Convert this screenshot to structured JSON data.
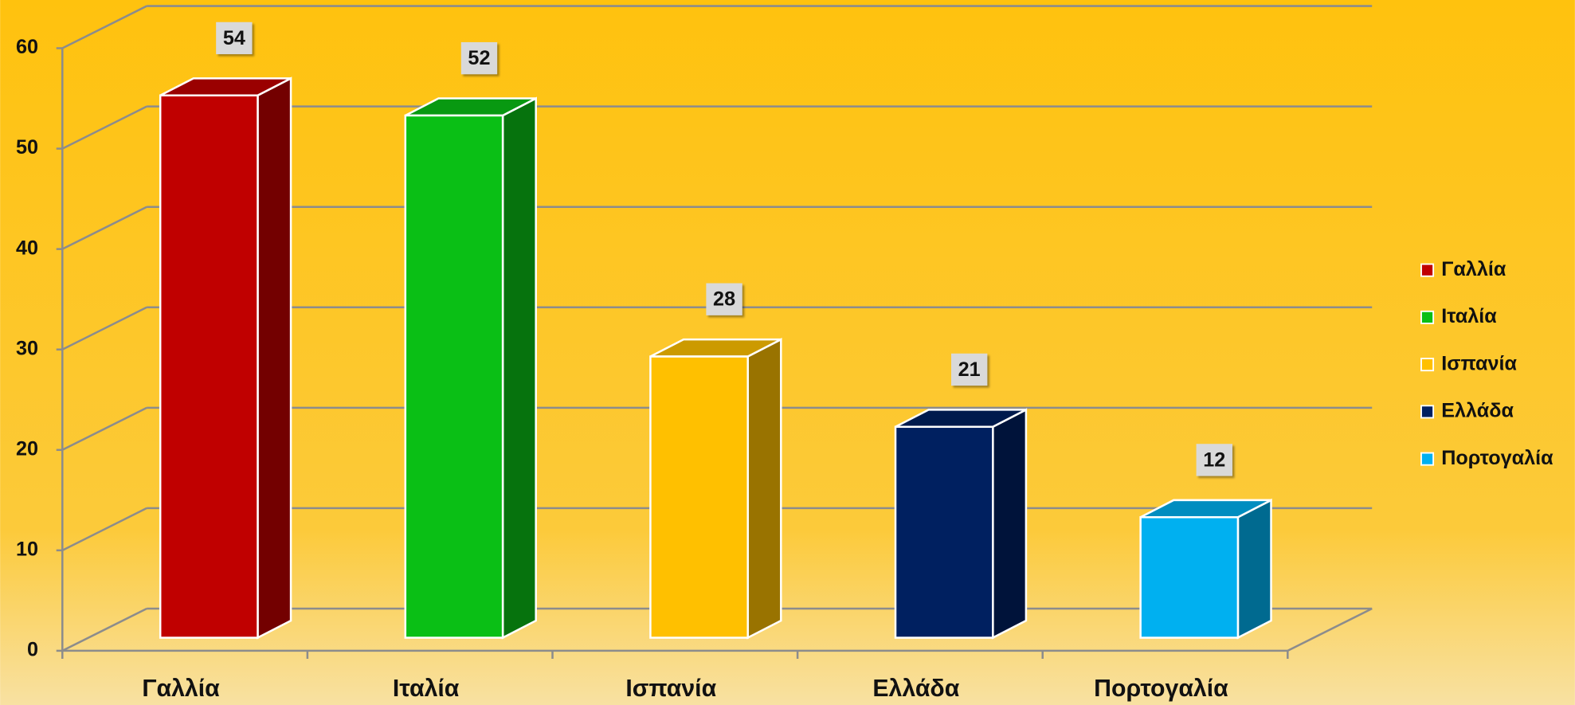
{
  "chart_data": {
    "type": "bar3d",
    "categories": [
      "Γαλλία",
      "Ιταλία",
      "Ισπανία",
      "Ελλάδα",
      "Πορτογαλία"
    ],
    "values": [
      54,
      52,
      28,
      21,
      12
    ],
    "colors": [
      "#c00000",
      "#0abf15",
      "#ffc000",
      "#002060",
      "#00b0f0"
    ],
    "ylim": [
      0,
      60
    ],
    "yticks": [
      0,
      10,
      20,
      30,
      40,
      50,
      60
    ],
    "grid": true,
    "legend": "right"
  }
}
